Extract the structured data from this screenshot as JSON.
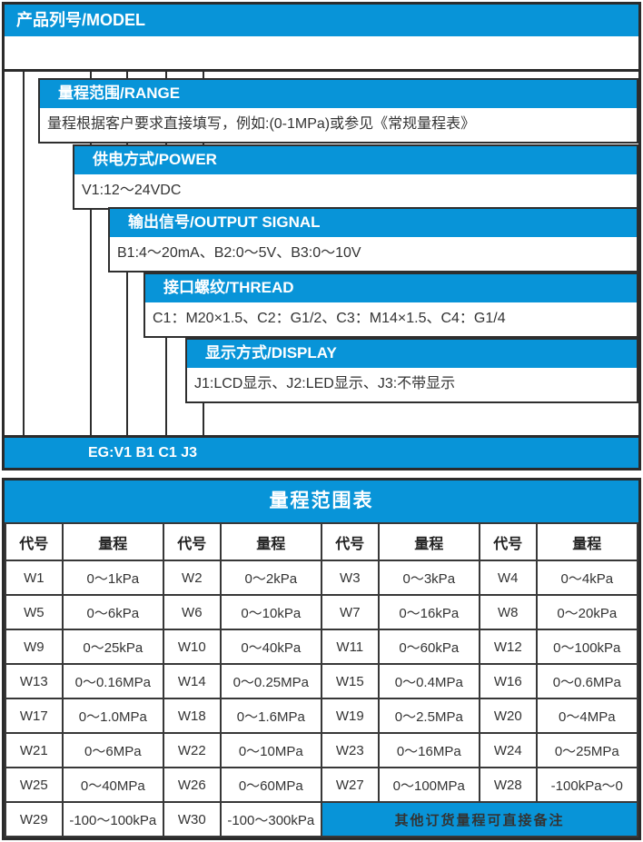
{
  "colors": {
    "blue": "#0894D8",
    "border": "#2b2b2b",
    "text": "#333333"
  },
  "model_section": {
    "title": "产品列号/MODEL",
    "fields": [
      {
        "label": "量程范围/RANGE",
        "value": "量程根据客户要求直接填写，例如:(0-1MPa)或参见《常规量程表》"
      },
      {
        "label": "供电方式/POWER",
        "value": "V1:12～24VDC"
      },
      {
        "label": "输出信号/OUTPUT SIGNAL",
        "value": "B1:4～20mA、B2:0～5V、B3:0～10V"
      },
      {
        "label": "接口螺纹/THREAD",
        "value": "C1：M20×1.5、C2：G1/2、C3：M14×1.5、C4：G1/4"
      },
      {
        "label": "显示方式/DISPLAY",
        "value": "J1:LCD显示、J2:LED显示、J3:不带显示"
      }
    ],
    "example": "EG:V1 B1 C1 J3"
  },
  "range_table": {
    "title": "量程范围表",
    "column_headers": [
      "代号",
      "量程",
      "代号",
      "量程",
      "代号",
      "量程",
      "代号",
      "量程"
    ],
    "rows": [
      [
        "W1",
        "0～1kPa",
        "W2",
        "0～2kPa",
        "W3",
        "0～3kPa",
        "W4",
        "0～4kPa"
      ],
      [
        "W5",
        "0～6kPa",
        "W6",
        "0～10kPa",
        "W7",
        "0～16kPa",
        "W8",
        "0～20kPa"
      ],
      [
        "W9",
        "0～25kPa",
        "W10",
        "0～40kPa",
        "W11",
        "0～60kPa",
        "W12",
        "0～100kPa"
      ],
      [
        "W13",
        "0～0.16MPa",
        "W14",
        "0～0.25MPa",
        "W15",
        "0～0.4MPa",
        "W16",
        "0～0.6MPa"
      ],
      [
        "W17",
        "0～1.0MPa",
        "W18",
        "0～1.6MPa",
        "W19",
        "0～2.5MPa",
        "W20",
        "0～4MPa"
      ],
      [
        "W21",
        "0～6MPa",
        "W22",
        "0～10MPa",
        "W23",
        "0～16MPa",
        "W24",
        "0～25MPa"
      ],
      [
        "W25",
        "0～40MPa",
        "W26",
        "0～60MPa",
        "W27",
        "0～100MPa",
        "W28",
        "-100kPa～0"
      ],
      [
        "W29",
        "-100～100kPa",
        "W30",
        "-100～300kPa"
      ]
    ],
    "note": "其他订货量程可直接备注"
  }
}
